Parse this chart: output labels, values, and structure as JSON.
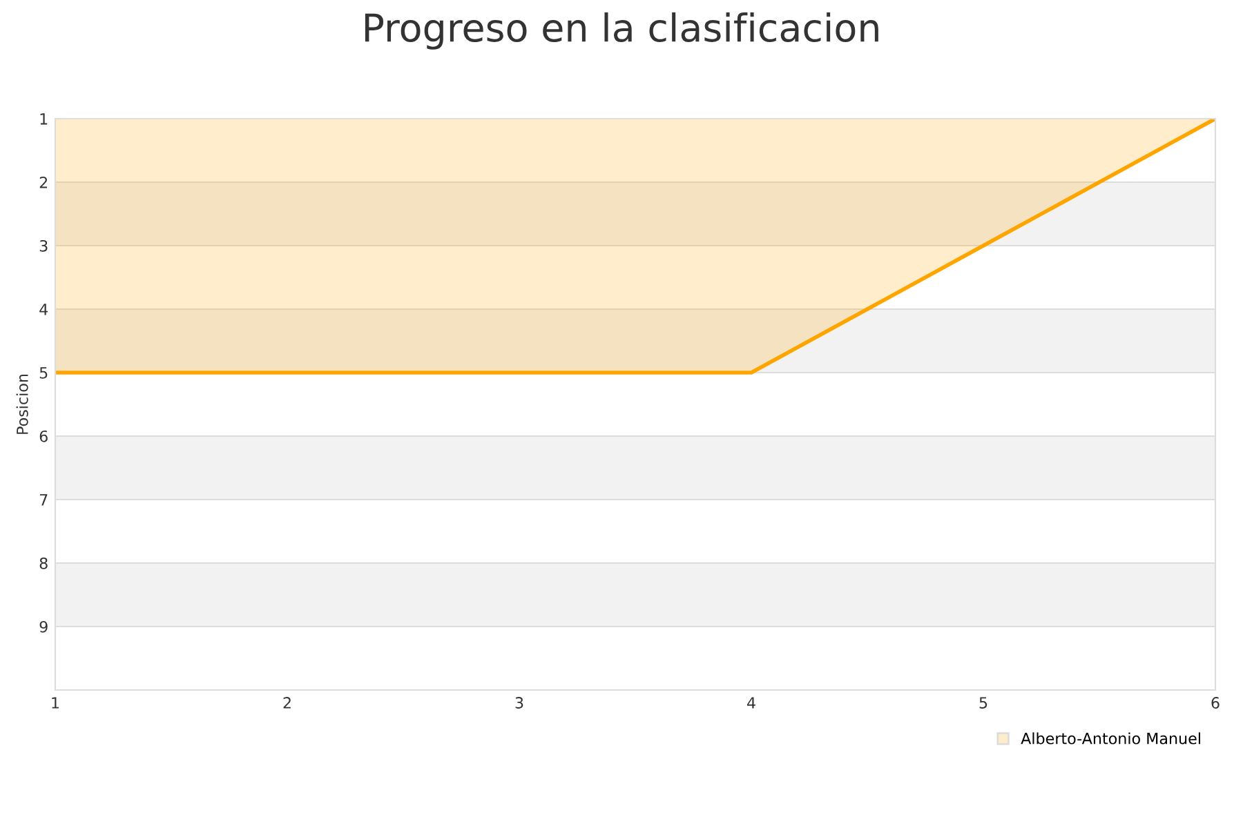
{
  "chart_data": {
    "type": "area",
    "title": "Progreso en la clasificacion",
    "ylabel": "Posicion",
    "x": [
      1,
      2,
      3,
      4,
      5,
      6
    ],
    "series": [
      {
        "name": "Alberto-Antonio Manuel",
        "color": "#ffa500",
        "values": [
          5,
          5,
          5,
          5,
          3,
          1
        ]
      }
    ],
    "xlim": [
      1,
      6
    ],
    "xticks": [
      1,
      2,
      3,
      4,
      5,
      6
    ],
    "ylim": [
      10,
      1
    ],
    "yticks": [
      1,
      2,
      3,
      4,
      5,
      6,
      7,
      8,
      9
    ],
    "bands": [
      {
        "axis": "y",
        "from": 2,
        "to": 3,
        "color": "#f2f2f2"
      },
      {
        "axis": "y",
        "from": 4,
        "to": 5,
        "color": "#f2f2f2"
      },
      {
        "axis": "y",
        "from": 6,
        "to": 7,
        "color": "#f2f2f2"
      },
      {
        "axis": "y",
        "from": 8,
        "to": 9,
        "color": "#f2f2f2"
      }
    ],
    "grid": "y",
    "legend": "bottom right"
  }
}
